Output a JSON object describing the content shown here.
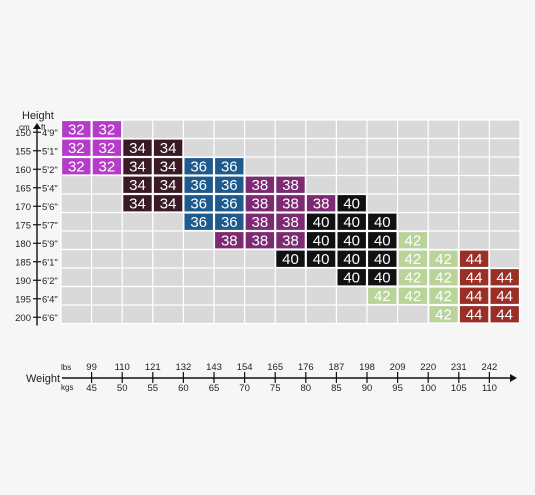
{
  "chart_data": {
    "type": "heatmap",
    "title": "",
    "height_axis": {
      "title": "Height",
      "units": [
        "cm",
        "ft"
      ],
      "cm": [
        "150",
        "155",
        "160",
        "165",
        "170",
        "175",
        "180",
        "185",
        "190",
        "195",
        "200"
      ],
      "ft": [
        "4'9\"",
        "5'1\"",
        "5'2\"",
        "5'4\"",
        "5'6\"",
        "5'7\"",
        "5'9\"",
        "6'1\"",
        "6'2\"",
        "6'4\"",
        "6'6\""
      ]
    },
    "weight_axis": {
      "title": "Weight",
      "units": [
        "lbs",
        "kgs"
      ],
      "lbs": [
        "99",
        "110",
        "121",
        "132",
        "143",
        "154",
        "165",
        "176",
        "187",
        "198",
        "209",
        "220",
        "231",
        "242"
      ],
      "kgs": [
        "45",
        "50",
        "55",
        "60",
        "65",
        "70",
        "75",
        "80",
        "85",
        "90",
        "95",
        "100",
        "105",
        "110"
      ]
    },
    "grid": true,
    "size_colors": {
      "32": "#b43cc8",
      "34": "#3a1a24",
      "36": "#1f5a8c",
      "38": "#7c2a72",
      "40": "#111111",
      "42": "#b8d498",
      "44": "#9a2f28"
    },
    "rows": [
      {
        "row": 0,
        "start": 0,
        "sizes": [
          "32",
          "32"
        ]
      },
      {
        "row": 1,
        "start": 0,
        "sizes": [
          "32",
          "32",
          "34",
          "34"
        ]
      },
      {
        "row": 2,
        "start": 0,
        "sizes": [
          "32",
          "32",
          "34",
          "34",
          "36",
          "36"
        ]
      },
      {
        "row": 3,
        "start": 2,
        "sizes": [
          "34",
          "34",
          "36",
          "36",
          "38",
          "38"
        ]
      },
      {
        "row": 4,
        "start": 2,
        "sizes": [
          "34",
          "34",
          "36",
          "36",
          "38",
          "38",
          "38",
          "40"
        ]
      },
      {
        "row": 5,
        "start": 4,
        "sizes": [
          "36",
          "36",
          "38",
          "38",
          "40",
          "40",
          "40"
        ]
      },
      {
        "row": 6,
        "start": 5,
        "sizes": [
          "38",
          "38",
          "38",
          "40",
          "40",
          "40",
          "42"
        ]
      },
      {
        "row": 7,
        "start": 7,
        "sizes": [
          "40",
          "40",
          "40",
          "40",
          "42",
          "42",
          "44"
        ]
      },
      {
        "row": 8,
        "start": 9,
        "sizes": [
          "40",
          "40",
          "42",
          "42",
          "44",
          "44"
        ]
      },
      {
        "row": 9,
        "start": 10,
        "sizes": [
          "42",
          "42",
          "42",
          "44",
          "44"
        ]
      },
      {
        "row": 10,
        "start": 12,
        "sizes": [
          "42",
          "44",
          "44"
        ]
      }
    ]
  }
}
